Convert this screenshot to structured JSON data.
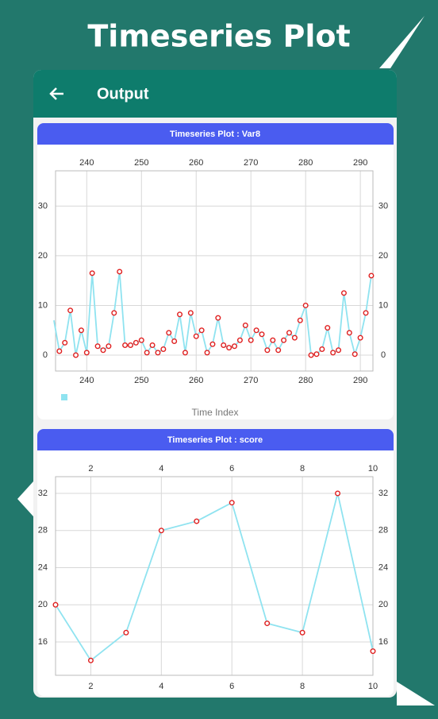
{
  "banner": {
    "title": "Timeseries Plot"
  },
  "app_bar": {
    "title": "Output"
  },
  "chart_data": [
    {
      "type": "line",
      "title": "Timeseries Plot : Var8",
      "x_label": "Time Index",
      "x": [
        234,
        235,
        236,
        237,
        238,
        239,
        240,
        241,
        242,
        243,
        244,
        245,
        246,
        247,
        248,
        249,
        250,
        251,
        252,
        253,
        254,
        255,
        256,
        257,
        258,
        259,
        260,
        261,
        262,
        263,
        264,
        265,
        266,
        267,
        268,
        269,
        270,
        271,
        272,
        273,
        274,
        275,
        276,
        277,
        278,
        279,
        280,
        281,
        282,
        283,
        284,
        285,
        286,
        287,
        288,
        289,
        290,
        291,
        292
      ],
      "series": [
        {
          "color": "#8fe3f0",
          "marker_color": "#e02020",
          "values": [
            7,
            0.8,
            2.5,
            9,
            0,
            5,
            0.5,
            16.5,
            1.8,
            1,
            1.8,
            8.5,
            16.8,
            2,
            2,
            2.5,
            3,
            0.5,
            2,
            0.5,
            1.2,
            4.5,
            2.8,
            8.2,
            0.5,
            8.5,
            3.8,
            5,
            0.5,
            2.2,
            7.5,
            2,
            1.5,
            1.8,
            3,
            6,
            3,
            5,
            4.2,
            1,
            3,
            1,
            3,
            4.5,
            3.5,
            7,
            10,
            0,
            0.2,
            1.2,
            5.5,
            0.5,
            1,
            12.5,
            4.5,
            0.2,
            3.5,
            8.5,
            16
          ]
        }
      ],
      "xlim": [
        234.3,
        292.3
      ],
      "xticks": [
        240,
        250,
        260,
        270,
        280,
        290
      ],
      "ylim": [
        -3.2,
        37.1
      ],
      "yticks": [
        0,
        10,
        20,
        30
      ],
      "grid": true,
      "legend": true
    },
    {
      "type": "line",
      "title": "Timeseries Plot : score",
      "x": [
        1,
        2,
        3,
        4,
        5,
        6,
        7,
        8,
        9,
        10
      ],
      "series": [
        {
          "color": "#8fe3f0",
          "marker_color": "#e02020",
          "values": [
            20,
            14,
            17,
            28,
            29,
            31,
            18,
            17,
            32,
            15
          ]
        }
      ],
      "xlim": [
        1,
        10
      ],
      "xticks": [
        2,
        4,
        6,
        8,
        10
      ],
      "ylim": [
        12.4,
        33.8
      ],
      "yticks": [
        16,
        20,
        24,
        28,
        32
      ],
      "grid": true,
      "legend": false
    }
  ]
}
